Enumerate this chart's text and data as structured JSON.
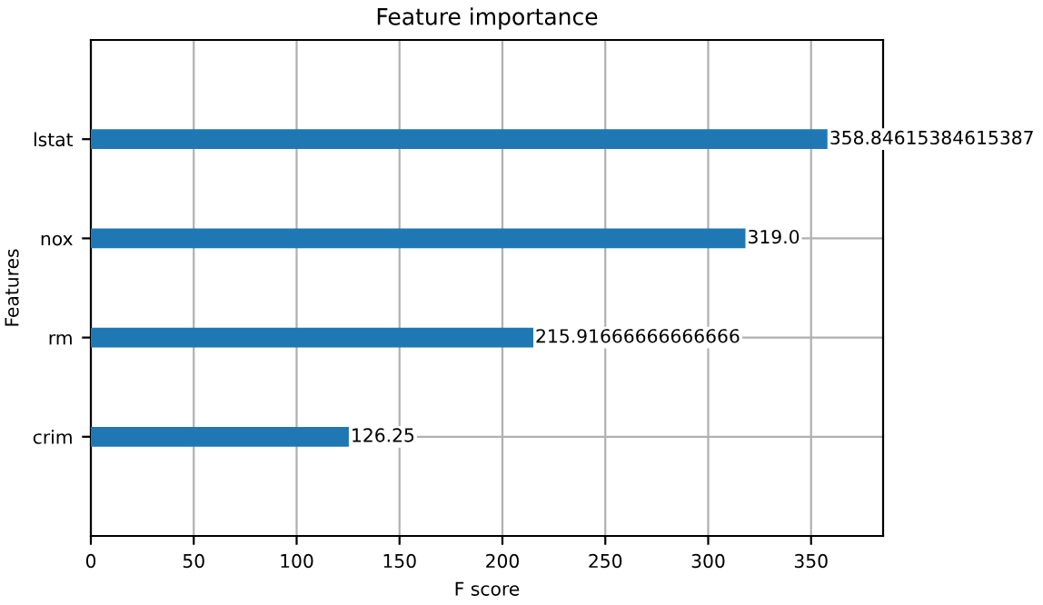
{
  "chart_data": {
    "type": "bar",
    "orientation": "horizontal",
    "title": "Feature importance",
    "xlabel": "F score",
    "ylabel": "Features",
    "categories": [
      "lstat",
      "nox",
      "rm",
      "crim"
    ],
    "values": [
      358.84615384615387,
      319.0,
      215.91666666666666,
      126.25
    ],
    "color": "#1f77b4",
    "xlim": [
      0,
      385
    ],
    "xticks": [
      0,
      50,
      100,
      150,
      200,
      250,
      300,
      350
    ],
    "grid": true,
    "value_labels": [
      "358.84615384615387",
      "319.0",
      "215.91666666666666",
      "126.25"
    ]
  }
}
